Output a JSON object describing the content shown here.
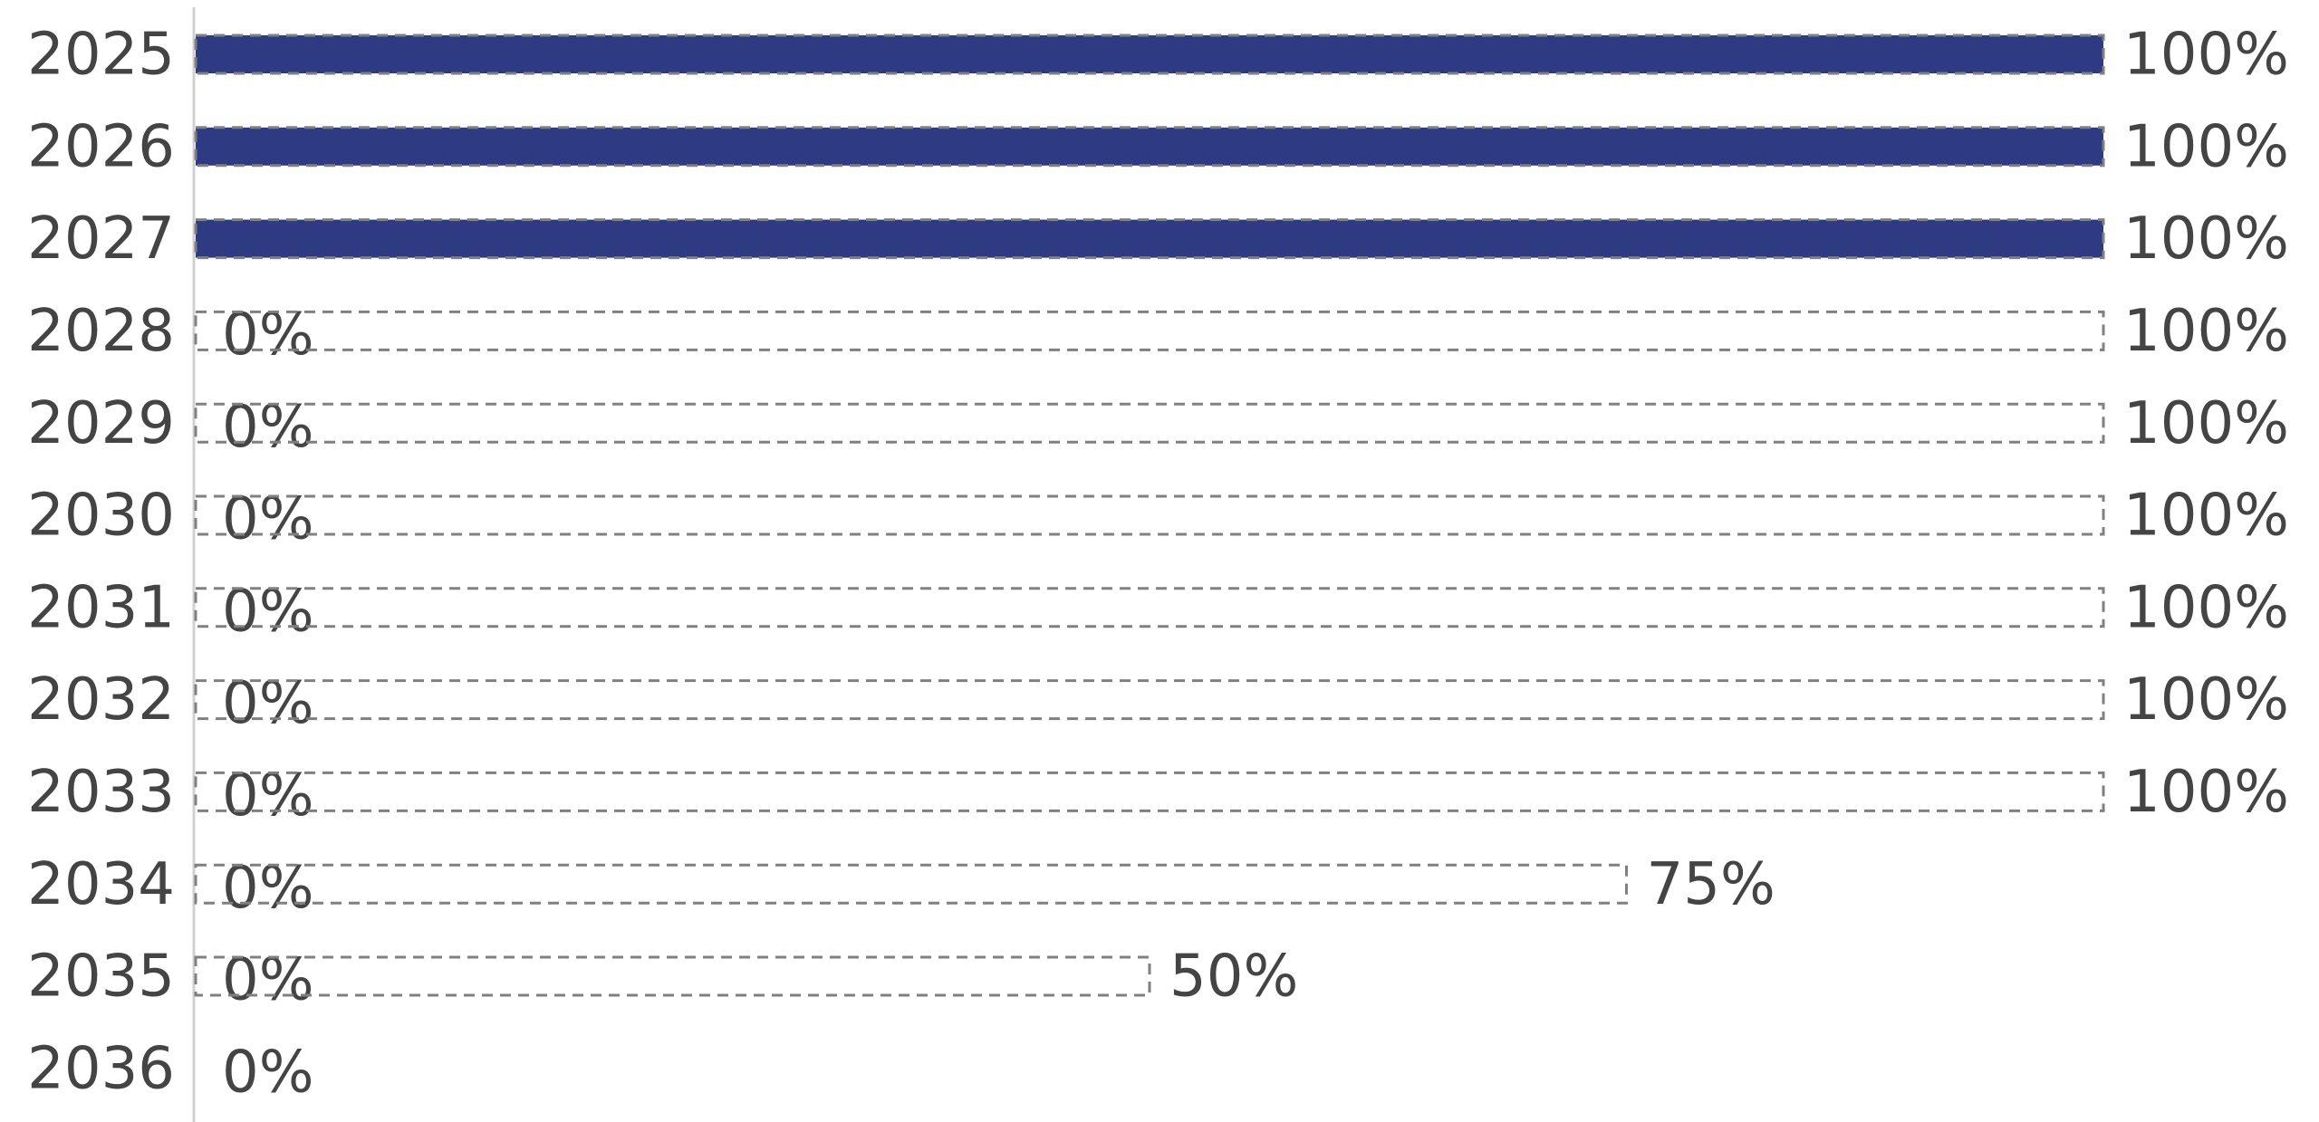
{
  "chart_data": {
    "type": "bar",
    "orientation": "horizontal",
    "categories": [
      "2025",
      "2026",
      "2027",
      "2028",
      "2029",
      "2030",
      "2031",
      "2032",
      "2033",
      "2034",
      "2035",
      "2036"
    ],
    "xlim": [
      0,
      100
    ],
    "series": [
      {
        "style": "filled",
        "color": "#2e3a82",
        "values": [
          100,
          100,
          100,
          0,
          0,
          0,
          0,
          0,
          0,
          0,
          0,
          0
        ],
        "value_labels": [
          null,
          null,
          null,
          "0%",
          "0%",
          "0%",
          "0%",
          "0%",
          "0%",
          "0%",
          "0%",
          "0%"
        ]
      },
      {
        "style": "dashed",
        "color": "#808080",
        "values": [
          100,
          100,
          100,
          100,
          100,
          100,
          100,
          100,
          100,
          75,
          50,
          0
        ],
        "value_labels": [
          "100%",
          "100%",
          "100%",
          "100%",
          "100%",
          "100%",
          "100%",
          "100%",
          "100%",
          "75%",
          "50%",
          null
        ]
      }
    ]
  }
}
